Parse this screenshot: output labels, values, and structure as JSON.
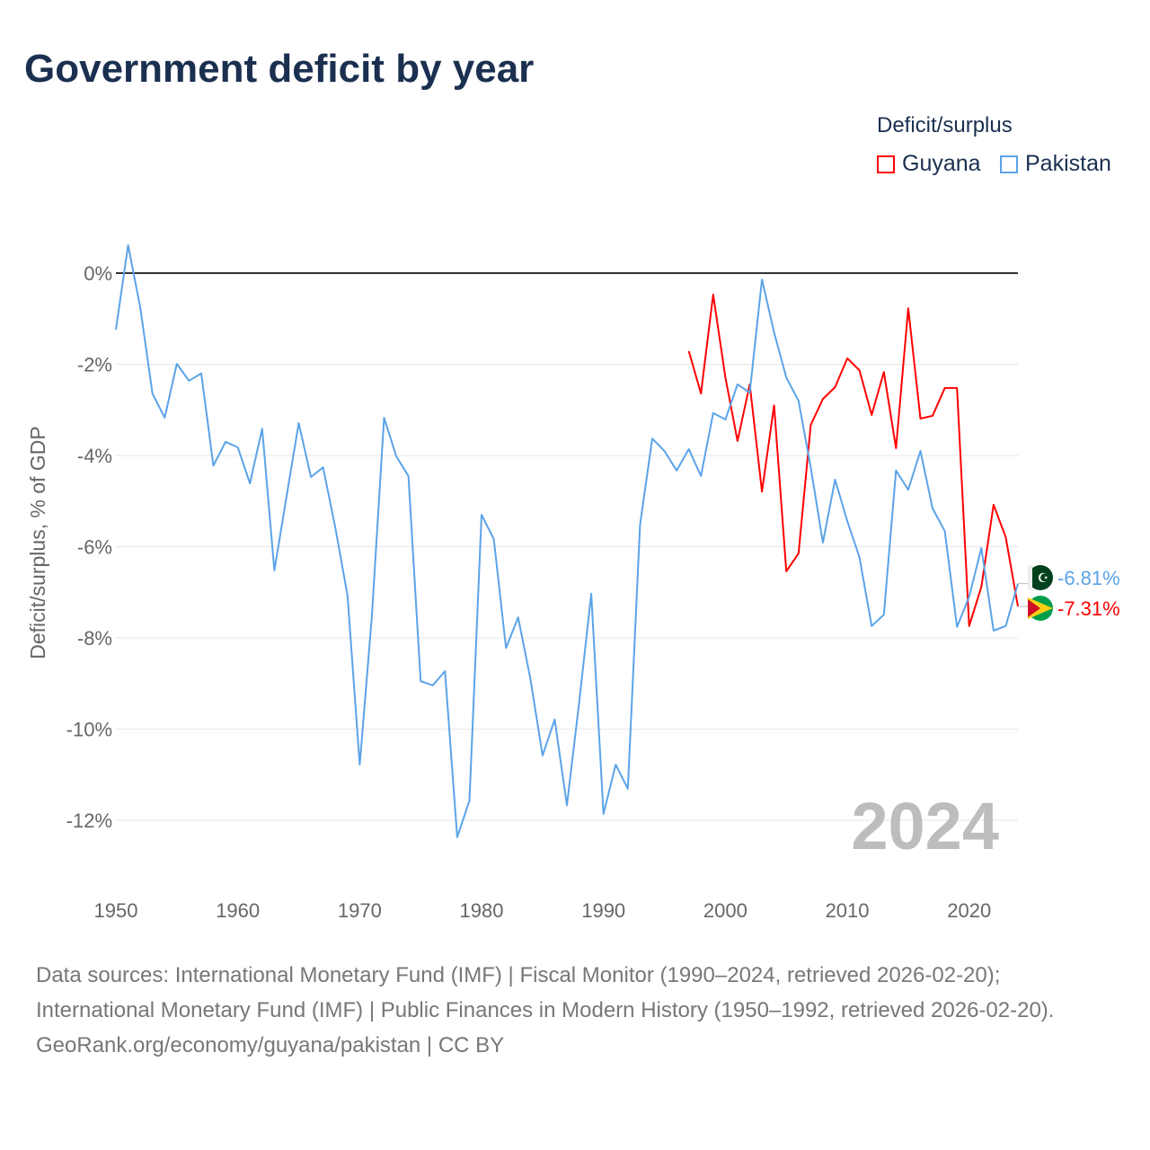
{
  "chart_data": {
    "type": "line",
    "title": "Government deficit by year",
    "xlabel": "",
    "ylabel": "Deficit/surplus, % of GDP",
    "xlim": [
      1950,
      2024
    ],
    "ylim": [
      -13,
      1
    ],
    "x_ticks": [
      "1950",
      "1960",
      "1970",
      "1980",
      "1990",
      "2000",
      "2010",
      "2020"
    ],
    "y_ticks": [
      {
        "value": 0,
        "label": "0%"
      },
      {
        "value": -2,
        "label": "-2%"
      },
      {
        "value": -4,
        "label": "-4%"
      },
      {
        "value": -6,
        "label": "-6%"
      },
      {
        "value": -8,
        "label": "-8%"
      },
      {
        "value": -10,
        "label": "-10%"
      },
      {
        "value": -12,
        "label": "-12%"
      }
    ],
    "legend_title": "Deficit/surplus",
    "legend_position": "top-right",
    "year_watermark": "2024",
    "series": [
      {
        "name": "Guyana",
        "color": "#ff0000",
        "end_label": "-7.31%",
        "start": 1997,
        "values": [
          -1.71,
          -2.64,
          -0.47,
          -2.29,
          -3.68,
          -2.44,
          -4.79,
          -2.9,
          -6.54,
          -6.15,
          -3.33,
          -2.76,
          -2.5,
          -1.87,
          -2.13,
          -3.11,
          -2.17,
          -3.84,
          -0.77,
          -3.19,
          -3.13,
          -2.52,
          -2.52,
          -7.74,
          -6.88,
          -5.08,
          -5.79,
          -7.31
        ]
      },
      {
        "name": "Pakistan",
        "color": "#5ba3e8",
        "end_label": "-6.81%",
        "start": 1950,
        "values": [
          -1.24,
          0.61,
          -0.75,
          -2.64,
          -3.17,
          -1.99,
          -2.36,
          -2.2,
          -4.22,
          -3.7,
          -3.82,
          -4.61,
          -3.41,
          -6.52,
          -4.9,
          -3.29,
          -4.47,
          -4.26,
          -5.58,
          -7.07,
          -10.78,
          -7.53,
          -3.17,
          -4.02,
          -4.45,
          -8.95,
          -9.04,
          -8.73,
          -12.37,
          -11.57,
          -5.3,
          -5.83,
          -8.22,
          -7.55,
          -8.89,
          -10.58,
          -9.79,
          -11.67,
          -9.42,
          -7.03,
          -11.86,
          -10.78,
          -11.31,
          -5.52,
          -3.63,
          -3.9,
          -4.33,
          -3.86,
          -4.45,
          -3.07,
          -3.21,
          -2.44,
          -2.62,
          -0.14,
          -1.3,
          -2.29,
          -2.8,
          -4.26,
          -5.91,
          -4.53,
          -5.44,
          -6.23,
          -7.74,
          -7.49,
          -4.33,
          -4.75,
          -3.9,
          -5.16,
          -5.66,
          -7.76,
          -7.1,
          -6.03,
          -7.84,
          -7.74,
          -6.81
        ]
      }
    ]
  },
  "sources": {
    "line1": "Data sources: International Monetary Fund (IMF) | Fiscal Monitor (1990–2024, retrieved 2026-02-20); International Monetary Fund (IMF) | Public Finances in Modern History (1950–1992, retrieved 2026-02-20).",
    "line2": "GeoRank.org/economy/guyana/pakistan | CC BY"
  }
}
